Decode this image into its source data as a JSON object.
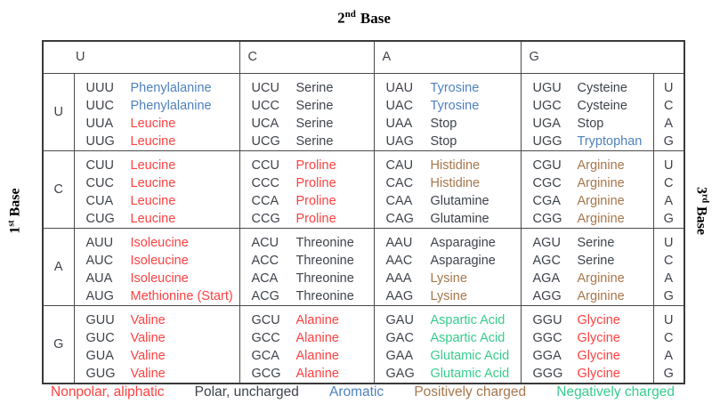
{
  "figure": {
    "top_label": {
      "num": "2",
      "ord": "nd",
      "word": "Base"
    },
    "left_label": {
      "num": "1",
      "ord": "st",
      "word": "Base"
    },
    "right_label": {
      "num": "3",
      "ord": "rd",
      "word": "Base"
    }
  },
  "colors": {
    "nonpolar": "#ff4040",
    "polar": "#3e434b",
    "aromatic": "#4f81bd",
    "positive": "#a6764b",
    "negative": "#35cd8c",
    "dark": "#3e434b"
  },
  "table": {
    "column_headers": [
      "U",
      "C",
      "A",
      "G"
    ],
    "third_base_letters": [
      "U",
      "C",
      "A",
      "G"
    ],
    "rows": [
      {
        "label": "U",
        "cells": [
          [
            {
              "codon": "UUU",
              "aa": "Phenylalanine",
              "category": "aromatic"
            },
            {
              "codon": "UUC",
              "aa": "Phenylalanine",
              "category": "aromatic"
            },
            {
              "codon": "UUA",
              "aa": "Leucine",
              "category": "nonpolar"
            },
            {
              "codon": "UUG",
              "aa": "Leucine",
              "category": "nonpolar"
            }
          ],
          [
            {
              "codon": "UCU",
              "aa": "Serine",
              "category": "polar"
            },
            {
              "codon": "UCC",
              "aa": "Serine",
              "category": "polar"
            },
            {
              "codon": "UCA",
              "aa": "Serine",
              "category": "polar"
            },
            {
              "codon": "UCG",
              "aa": "Serine",
              "category": "polar"
            }
          ],
          [
            {
              "codon": "UAU",
              "aa": "Tyrosine",
              "category": "aromatic"
            },
            {
              "codon": "UAC",
              "aa": "Tyrosine",
              "category": "aromatic"
            },
            {
              "codon": "UAA",
              "aa": "Stop",
              "category": "polar"
            },
            {
              "codon": "UAG",
              "aa": "Stop",
              "category": "polar"
            }
          ],
          [
            {
              "codon": "UGU",
              "aa": "Cysteine",
              "category": "polar"
            },
            {
              "codon": "UGC",
              "aa": "Cysteine",
              "category": "polar"
            },
            {
              "codon": "UGA",
              "aa": "Stop",
              "category": "polar"
            },
            {
              "codon": "UGG",
              "aa": "Tryptophan",
              "category": "aromatic"
            }
          ]
        ]
      },
      {
        "label": "C",
        "cells": [
          [
            {
              "codon": "CUU",
              "aa": "Leucine",
              "category": "nonpolar"
            },
            {
              "codon": "CUC",
              "aa": "Leucine",
              "category": "nonpolar"
            },
            {
              "codon": "CUA",
              "aa": "Leucine",
              "category": "nonpolar"
            },
            {
              "codon": "CUG",
              "aa": "Leucine",
              "category": "nonpolar"
            }
          ],
          [
            {
              "codon": "CCU",
              "aa": "Proline",
              "category": "nonpolar"
            },
            {
              "codon": "CCC",
              "aa": "Proline",
              "category": "nonpolar"
            },
            {
              "codon": "CCA",
              "aa": "Proline",
              "category": "nonpolar"
            },
            {
              "codon": "CCG",
              "aa": "Proline",
              "category": "nonpolar"
            }
          ],
          [
            {
              "codon": "CAU",
              "aa": "Histidine",
              "category": "positive"
            },
            {
              "codon": "CAC",
              "aa": "Histidine",
              "category": "positive"
            },
            {
              "codon": "CAA",
              "aa": "Glutamine",
              "category": "polar"
            },
            {
              "codon": "CAG",
              "aa": "Glutamine",
              "category": "polar"
            }
          ],
          [
            {
              "codon": "CGU",
              "aa": "Arginine",
              "category": "positive"
            },
            {
              "codon": "CGC",
              "aa": "Arginine",
              "category": "positive"
            },
            {
              "codon": "CGA",
              "aa": "Arginine",
              "category": "positive"
            },
            {
              "codon": "CGG",
              "aa": "Arginine",
              "category": "positive"
            }
          ]
        ]
      },
      {
        "label": "A",
        "cells": [
          [
            {
              "codon": "AUU",
              "aa": "Isoleucine",
              "category": "nonpolar"
            },
            {
              "codon": "AUC",
              "aa": "Isoleucine",
              "category": "nonpolar"
            },
            {
              "codon": "AUA",
              "aa": "Isoleucine",
              "category": "nonpolar"
            },
            {
              "codon": "AUG",
              "aa": "Methionine (Start)",
              "category": "nonpolar"
            }
          ],
          [
            {
              "codon": "ACU",
              "aa": "Threonine",
              "category": "polar"
            },
            {
              "codon": "ACC",
              "aa": "Threonine",
              "category": "polar"
            },
            {
              "codon": "ACA",
              "aa": "Threonine",
              "category": "polar"
            },
            {
              "codon": "ACG",
              "aa": "Threonine",
              "category": "polar"
            }
          ],
          [
            {
              "codon": "AAU",
              "aa": "Asparagine",
              "category": "polar"
            },
            {
              "codon": "AAC",
              "aa": "Asparagine",
              "category": "polar"
            },
            {
              "codon": "AAA",
              "aa": "Lysine",
              "category": "positive"
            },
            {
              "codon": "AAG",
              "aa": "Lysine",
              "category": "positive"
            }
          ],
          [
            {
              "codon": "AGU",
              "aa": "Serine",
              "category": "polar"
            },
            {
              "codon": "AGC",
              "aa": "Serine",
              "category": "polar"
            },
            {
              "codon": "AGA",
              "aa": "Arginine",
              "category": "positive"
            },
            {
              "codon": "AGG",
              "aa": "Arginine",
              "category": "positive"
            }
          ]
        ]
      },
      {
        "label": "G",
        "cells": [
          [
            {
              "codon": "GUU",
              "aa": "Valine",
              "category": "nonpolar"
            },
            {
              "codon": "GUC",
              "aa": "Valine",
              "category": "nonpolar"
            },
            {
              "codon": "GUA",
              "aa": "Valine",
              "category": "nonpolar"
            },
            {
              "codon": "GUG",
              "aa": "Valine",
              "category": "nonpolar"
            }
          ],
          [
            {
              "codon": "GCU",
              "aa": "Alanine",
              "category": "nonpolar"
            },
            {
              "codon": "GCC",
              "aa": "Alanine",
              "category": "nonpolar"
            },
            {
              "codon": "GCA",
              "aa": "Alanine",
              "category": "nonpolar"
            },
            {
              "codon": "GCG",
              "aa": "Alanine",
              "category": "nonpolar"
            }
          ],
          [
            {
              "codon": "GAU",
              "aa": "Aspartic Acid",
              "category": "negative"
            },
            {
              "codon": "GAC",
              "aa": "Aspartic Acid",
              "category": "negative"
            },
            {
              "codon": "GAA",
              "aa": "Glutamic Acid",
              "category": "negative"
            },
            {
              "codon": "GAG",
              "aa": "Glutamic Acid",
              "category": "negative"
            }
          ],
          [
            {
              "codon": "GGU",
              "aa": "Glycine",
              "category": "nonpolar"
            },
            {
              "codon": "GGC",
              "aa": "Glycine",
              "category": "nonpolar"
            },
            {
              "codon": "GGA",
              "aa": "Glycine",
              "category": "nonpolar"
            },
            {
              "codon": "GGG",
              "aa": "Glycine",
              "category": "nonpolar"
            }
          ]
        ]
      }
    ]
  },
  "legend": [
    {
      "label": "Nonpolar, aliphatic",
      "category": "nonpolar"
    },
    {
      "label": "Polar, uncharged",
      "category": "polar"
    },
    {
      "label": "Aromatic",
      "category": "aromatic"
    },
    {
      "label": "Positively charged",
      "category": "positive"
    },
    {
      "label": "Negatively charged",
      "category": "negative"
    }
  ]
}
